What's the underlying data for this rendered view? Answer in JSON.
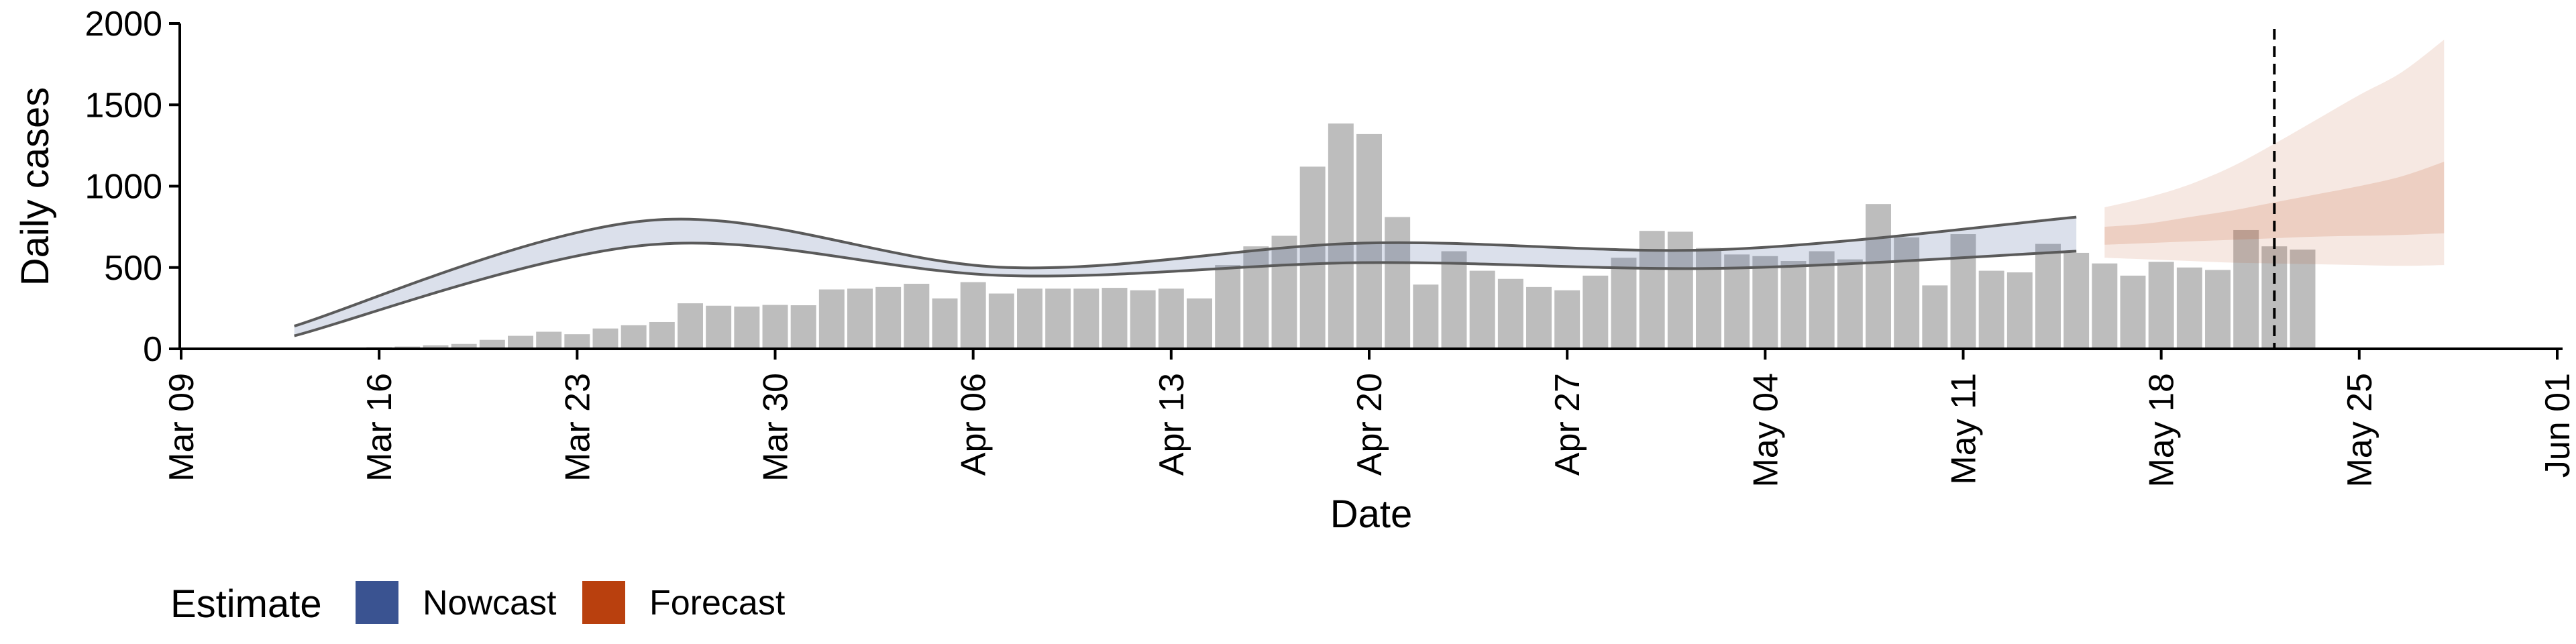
{
  "chart_data": {
    "type": "bar",
    "xlabel": "Date",
    "ylabel": "Daily cases",
    "ylim": [
      0,
      2000
    ],
    "yticks": [
      0,
      500,
      1000,
      1500,
      2000
    ],
    "x_range": [
      "2020-03-09",
      "2020-06-01"
    ],
    "x_ticks": [
      {
        "date": "2020-03-09",
        "label": "Mar 09"
      },
      {
        "date": "2020-03-16",
        "label": "Mar 16"
      },
      {
        "date": "2020-03-23",
        "label": "Mar 23"
      },
      {
        "date": "2020-03-30",
        "label": "Mar 30"
      },
      {
        "date": "2020-04-06",
        "label": "Apr 06"
      },
      {
        "date": "2020-04-13",
        "label": "Apr 13"
      },
      {
        "date": "2020-04-20",
        "label": "Apr 20"
      },
      {
        "date": "2020-04-27",
        "label": "Apr 27"
      },
      {
        "date": "2020-05-04",
        "label": "May 04"
      },
      {
        "date": "2020-05-11",
        "label": "May 11"
      },
      {
        "date": "2020-05-18",
        "label": "May 18"
      },
      {
        "date": "2020-05-25",
        "label": "May 25"
      },
      {
        "date": "2020-06-01",
        "label": "Jun 01"
      }
    ],
    "grid": false,
    "bars": {
      "color": "#bdbdbd",
      "start_date": "2020-03-13",
      "values": [
        2,
        4,
        6,
        10,
        14,
        22,
        30,
        55,
        80,
        105,
        90,
        125,
        145,
        165,
        280,
        265,
        260,
        270,
        268,
        365,
        370,
        380,
        400,
        310,
        410,
        340,
        370,
        370,
        370,
        375,
        360,
        370,
        310,
        515,
        630,
        695,
        1120,
        1385,
        1320,
        810,
        395,
        600,
        480,
        430,
        380,
        360,
        450,
        560,
        725,
        720,
        620,
        580,
        570,
        540,
        600,
        550,
        890,
        685,
        390,
        705,
        480,
        470,
        645,
        590,
        525,
        450,
        535,
        500,
        485,
        730,
        630,
        610
      ]
    },
    "nowcast": {
      "legend": "Nowcast",
      "color": "#3a5391",
      "start_date": "2020-03-13",
      "end_date": "2020-05-15",
      "outer_upper": [
        140,
        790,
        500,
        650,
        610,
        810
      ],
      "outer_lower": [
        80,
        640,
        450,
        530,
        495,
        600
      ]
    },
    "forecast": {
      "legend": "Forecast",
      "color": "#b9400e",
      "start_date": "2020-05-16",
      "end_date": "2020-05-28",
      "outer_upper": [
        870,
        930,
        1010,
        1120,
        1260,
        1410,
        1560,
        1700,
        1900
      ],
      "outer_lower": [
        560,
        550,
        540,
        530,
        525,
        520,
        515,
        510,
        515
      ],
      "inner_upper": [
        750,
        770,
        810,
        850,
        900,
        950,
        1000,
        1060,
        1150
      ],
      "inner_lower": [
        640,
        650,
        660,
        670,
        680,
        690,
        695,
        700,
        710
      ]
    },
    "vline_date": "2020-05-22",
    "legend": {
      "title": "Estimate",
      "items": [
        {
          "label": "Nowcast",
          "color": "#3a5391"
        },
        {
          "label": "Forecast",
          "color": "#b9400e"
        }
      ],
      "position": "bottom-left"
    }
  }
}
